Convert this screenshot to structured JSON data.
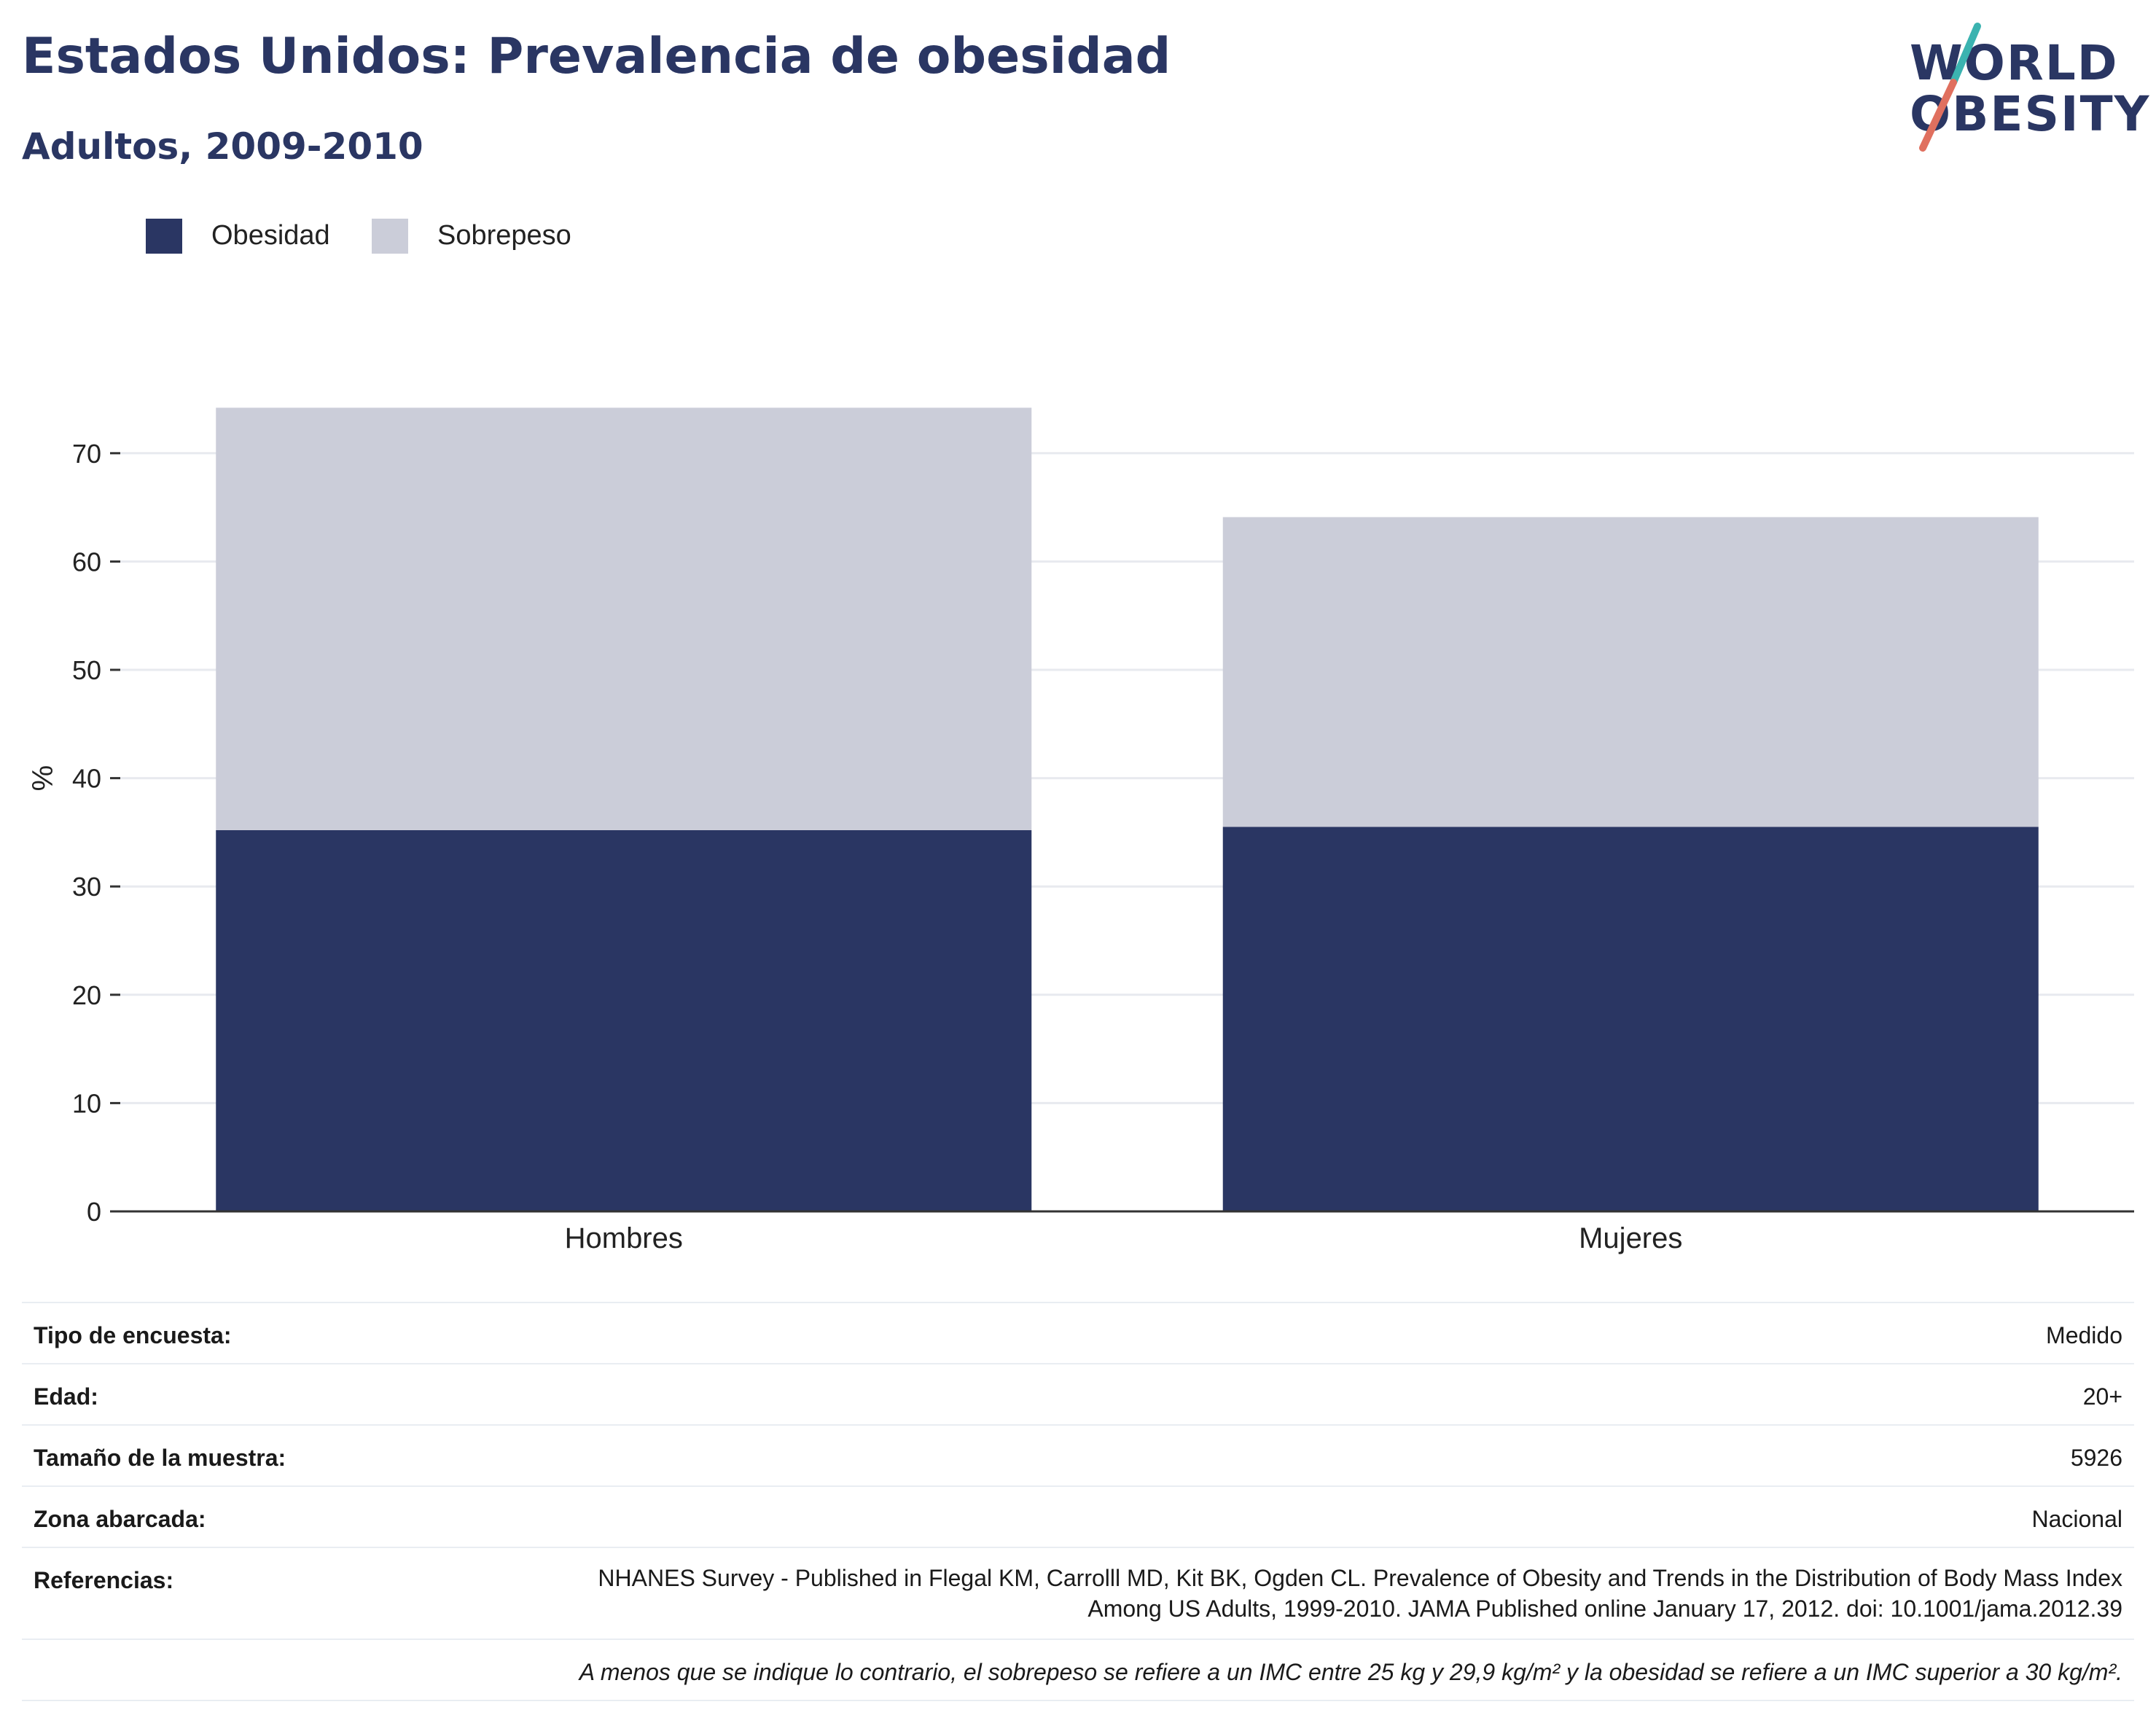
{
  "header": {
    "title": "Estados Unidos: Prevalencia de obesidad",
    "subtitle": "Adultos, 2009-2010"
  },
  "logo": {
    "line1": "WORLD",
    "line2": "OBESITY",
    "colors": {
      "text": "#2a3663",
      "stroke_top": "#3bb3b0",
      "stroke_bottom": "#e0705f"
    }
  },
  "colors": {
    "obesidad": "#2a3663",
    "sobrepeso": "#cbcdd9",
    "grid": "#e8eaef",
    "axis": "#333333"
  },
  "chart_data": {
    "type": "bar",
    "stacked": true,
    "categories": [
      "Hombres",
      "Mujeres"
    ],
    "series": [
      {
        "name": "Obesidad",
        "values": [
          35.2,
          35.5
        ]
      },
      {
        "name": "Sobrepeso",
        "values": [
          39.0,
          28.6
        ]
      }
    ],
    "ylabel": "%",
    "ylim": [
      0,
      80
    ],
    "yticks": [
      0,
      10,
      20,
      30,
      40,
      50,
      60,
      70
    ],
    "grid": true,
    "legend_position": "top-left"
  },
  "info": {
    "rows": [
      {
        "label": "Tipo de encuesta:",
        "value": "Medido"
      },
      {
        "label": "Edad:",
        "value": "20+"
      },
      {
        "label": "Tamaño de la muestra:",
        "value": "5926"
      },
      {
        "label": "Zona abarcada:",
        "value": "Nacional"
      },
      {
        "label": "Referencias:",
        "value": "NHANES Survey - Published in Flegal KM, Carrolll MD, Kit BK, Ogden CL. Prevalence of Obesity and Trends in the Distribution of Body Mass Index Among US Adults, 1999-2010. JAMA Published online January 17, 2012. doi: 10.1001/jama.2012.39"
      }
    ],
    "note": "A menos que se indique lo contrario, el sobrepeso se refiere a un IMC entre 25 kg y 29,9 kg/m² y la obesidad se refiere a un IMC superior a 30 kg/m²."
  }
}
